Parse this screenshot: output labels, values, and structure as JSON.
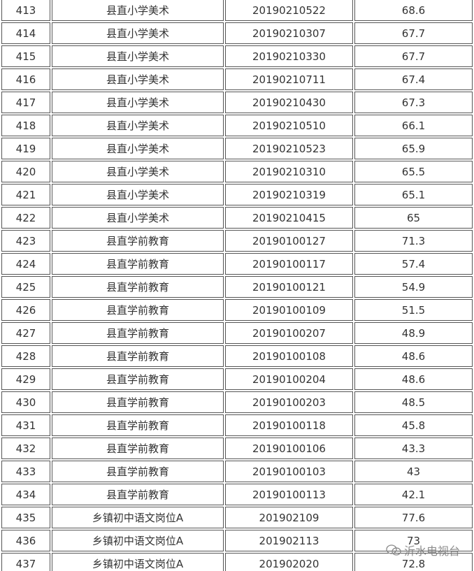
{
  "table": {
    "rows": [
      [
        "413",
        "县直小学美术",
        "20190210522",
        "68.6"
      ],
      [
        "414",
        "县直小学美术",
        "20190210307",
        "67.7"
      ],
      [
        "415",
        "县直小学美术",
        "20190210330",
        "67.7"
      ],
      [
        "416",
        "县直小学美术",
        "20190210711",
        "67.4"
      ],
      [
        "417",
        "县直小学美术",
        "20190210430",
        "67.3"
      ],
      [
        "418",
        "县直小学美术",
        "20190210510",
        "66.1"
      ],
      [
        "419",
        "县直小学美术",
        "20190210523",
        "65.9"
      ],
      [
        "420",
        "县直小学美术",
        "20190210310",
        "65.5"
      ],
      [
        "421",
        "县直小学美术",
        "20190210319",
        "65.1"
      ],
      [
        "422",
        "县直小学美术",
        "20190210415",
        "65"
      ],
      [
        "423",
        "县直学前教育",
        "20190100127",
        "71.3"
      ],
      [
        "424",
        "县直学前教育",
        "20190100117",
        "57.4"
      ],
      [
        "425",
        "县直学前教育",
        "20190100121",
        "54.9"
      ],
      [
        "426",
        "县直学前教育",
        "20190100109",
        "51.5"
      ],
      [
        "427",
        "县直学前教育",
        "20190100207",
        "48.9"
      ],
      [
        "428",
        "县直学前教育",
        "20190100108",
        "48.6"
      ],
      [
        "429",
        "县直学前教育",
        "20190100204",
        "48.6"
      ],
      [
        "430",
        "县直学前教育",
        "20190100203",
        "48.5"
      ],
      [
        "431",
        "县直学前教育",
        "20190100118",
        "45.8"
      ],
      [
        "432",
        "县直学前教育",
        "20190100106",
        "43.3"
      ],
      [
        "433",
        "县直学前教育",
        "20190100103",
        "43"
      ],
      [
        "434",
        "县直学前教育",
        "20190100113",
        "42.1"
      ],
      [
        "435",
        "乡镇初中语文岗位A",
        "201902109",
        "77.6"
      ],
      [
        "436",
        "乡镇初中语文岗位A",
        "201902113",
        "73"
      ],
      [
        "437",
        "乡镇初中语文岗位A",
        "201902020",
        "72.8"
      ]
    ]
  },
  "watermark": "沂水电视台"
}
